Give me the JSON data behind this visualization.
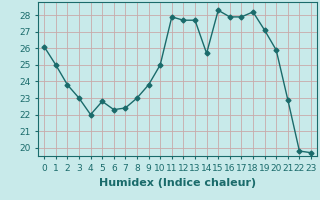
{
  "x": [
    0,
    1,
    2,
    3,
    4,
    5,
    6,
    7,
    8,
    9,
    10,
    11,
    12,
    13,
    14,
    15,
    16,
    17,
    18,
    19,
    20,
    21,
    22,
    23
  ],
  "y": [
    26.1,
    25.0,
    23.8,
    23.0,
    22.0,
    22.8,
    22.3,
    22.4,
    23.0,
    23.8,
    25.0,
    27.9,
    27.7,
    27.7,
    25.7,
    28.3,
    27.9,
    27.9,
    28.2,
    27.1,
    25.9,
    22.9,
    19.8,
    19.7
  ],
  "line_color": "#1a6b6b",
  "marker": "D",
  "marker_size": 2.5,
  "bg_color": "#c8eaea",
  "grid_color": "#c8aaaa",
  "xlabel": "Humidex (Indice chaleur)",
  "ylim": [
    19.5,
    28.8
  ],
  "yticks": [
    20,
    21,
    22,
    23,
    24,
    25,
    26,
    27,
    28
  ],
  "xticks": [
    0,
    1,
    2,
    3,
    4,
    5,
    6,
    7,
    8,
    9,
    10,
    11,
    12,
    13,
    14,
    15,
    16,
    17,
    18,
    19,
    20,
    21,
    22,
    23
  ],
  "tick_label_fontsize": 6.5,
  "xlabel_fontsize": 8,
  "line_width": 1.0
}
